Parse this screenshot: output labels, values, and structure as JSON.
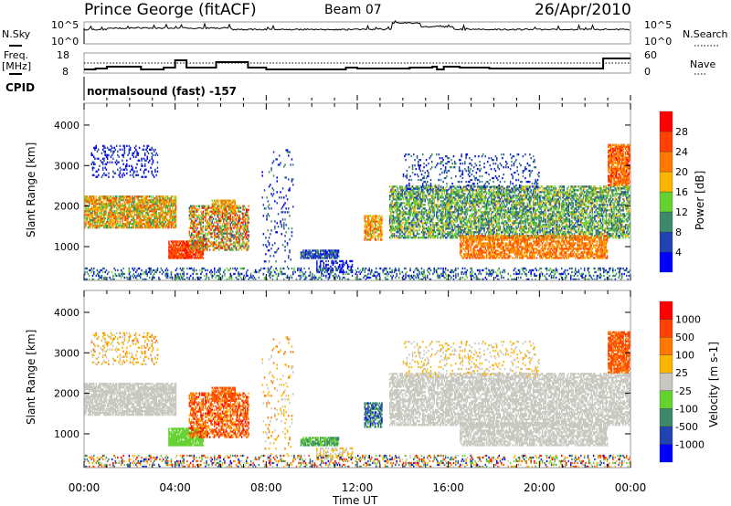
{
  "header": {
    "station": "Prince George (fitACF)",
    "beam": "Beam 07",
    "date": "26/Apr/2010"
  },
  "top_panels": {
    "nsky_label": "N.Sky",
    "nsky_ticks": [
      "10^5",
      "10^0"
    ],
    "nsearch_label": "N.Search",
    "nsearch_ticks": [
      "10^5",
      "10^0"
    ],
    "freq_label_1": "Freq.",
    "freq_label_2": "[MHz]",
    "freq_ticks": [
      "18",
      "8"
    ],
    "nave_label": "Nave",
    "nave_ticks": [
      "60",
      "0"
    ],
    "cpid_label": "CPID",
    "cpid_value": "normalsound (fast) -157"
  },
  "chart_data": {
    "type": "heatmap",
    "xlabel": "Time UT",
    "x_ticks": [
      "00:00",
      "04:00",
      "08:00",
      "12:00",
      "16:00",
      "20:00",
      "00:00"
    ],
    "xlim": [
      0,
      24
    ],
    "ylabel": "Slant Range [km]",
    "y_ticks": [
      "4000",
      "3000",
      "2000",
      "1000"
    ],
    "ylim": [
      165,
      4540
    ],
    "panels": [
      {
        "name": "power",
        "colorbar_label": "Power [dB]",
        "colorbar_ticks": [
          "28",
          "24",
          "20",
          "16",
          "12",
          "8",
          "4"
        ],
        "colors": [
          "#0000ff",
          "#2244b0",
          "#3c8a6a",
          "#66d232",
          "#ffb400",
          "#ff7800",
          "#ff4000",
          "#ff0000"
        ]
      },
      {
        "name": "velocity",
        "colorbar_label": "Velocity [m s-1]",
        "colorbar_ticks": [
          "1000",
          "500",
          "100",
          "25",
          "-25",
          "-100",
          "-500",
          "-1000"
        ],
        "colors": [
          "#0000ff",
          "#2244b0",
          "#3c8a6a",
          "#66d232",
          "#c8c8c0",
          "#ffb400",
          "#ff7800",
          "#ff4000",
          "#ff0000"
        ]
      }
    ],
    "regions": [
      {
        "t": [
          0,
          4
        ],
        "r": [
          1450,
          2250
        ],
        "power": [
          2,
          6
        ],
        "vel": [
          4,
          4
        ],
        "density": 0.8
      },
      {
        "t": [
          0.3,
          3.2
        ],
        "r": [
          2700,
          3500
        ],
        "power": [
          0,
          1
        ],
        "vel": [
          4,
          6
        ],
        "density": 0.25
      },
      {
        "t": [
          3.7,
          5.2
        ],
        "r": [
          700,
          1150
        ],
        "power": [
          5,
          7
        ],
        "vel": [
          3,
          3
        ],
        "density": 0.85
      },
      {
        "t": [
          4.6,
          7.2
        ],
        "r": [
          900,
          2000
        ],
        "power": [
          1,
          7
        ],
        "vel": [
          5,
          8
        ],
        "density": 0.6
      },
      {
        "t": [
          5.6,
          6.6
        ],
        "r": [
          1800,
          2150
        ],
        "power": [
          3,
          6
        ],
        "vel": [
          6,
          7
        ],
        "density": 0.7
      },
      {
        "t": [
          7.8,
          9.2
        ],
        "r": [
          300,
          3400
        ],
        "power": [
          0,
          2
        ],
        "vel": [
          4,
          6
        ],
        "density": 0.08
      },
      {
        "t": [
          9.5,
          11.2
        ],
        "r": [
          700,
          900
        ],
        "power": [
          0,
          2
        ],
        "vel": [
          2,
          3
        ],
        "density": 0.8
      },
      {
        "t": [
          10.2,
          11.8
        ],
        "r": [
          350,
          650
        ],
        "power": [
          0,
          1
        ],
        "vel": [
          4,
          5
        ],
        "density": 0.4
      },
      {
        "t": [
          12.3,
          13.1
        ],
        "r": [
          1150,
          1750
        ],
        "power": [
          3,
          6
        ],
        "vel": [
          0,
          3
        ],
        "density": 0.7
      },
      {
        "t": [
          13.4,
          24
        ],
        "r": [
          1200,
          2500
        ],
        "power": [
          1,
          4
        ],
        "vel": [
          4,
          4
        ],
        "density": 0.65
      },
      {
        "t": [
          16.5,
          23
        ],
        "r": [
          700,
          1250
        ],
        "power": [
          4,
          6
        ],
        "vel": [
          4,
          4
        ],
        "density": 0.7
      },
      {
        "t": [
          14,
          20
        ],
        "r": [
          2400,
          3300
        ],
        "power": [
          0,
          2
        ],
        "vel": [
          4,
          5
        ],
        "density": 0.15
      },
      {
        "t": [
          23,
          24
        ],
        "r": [
          2500,
          3500
        ],
        "power": [
          4,
          7
        ],
        "vel": [
          6,
          7
        ],
        "density": 0.8
      },
      {
        "t": [
          0,
          24
        ],
        "r": [
          170,
          450
        ],
        "power": [
          0,
          3
        ],
        "vel": [
          0,
          8
        ],
        "density": 0.3
      }
    ]
  }
}
